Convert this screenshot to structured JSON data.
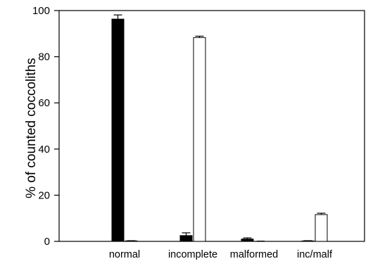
{
  "chart_data": {
    "type": "bar",
    "title": "",
    "xlabel": "",
    "ylabel": "% of counted coccoliths",
    "categories": [
      "normal",
      "incomplete",
      "malformed",
      "inc/malf"
    ],
    "ylim": [
      0,
      100
    ],
    "yticks": [
      0,
      20,
      40,
      60,
      80,
      100
    ],
    "grid": false,
    "legend": "none",
    "series": [
      {
        "fill": "#000000",
        "values": [
          96.3,
          2.5,
          1.0,
          0.2
        ],
        "errors": [
          1.8,
          1.2,
          0.5,
          0.1
        ]
      },
      {
        "fill": "#ffffff",
        "values": [
          0.2,
          88.3,
          0.0,
          11.6
        ],
        "errors": [
          0.1,
          0.6,
          0.0,
          0.6
        ]
      }
    ]
  }
}
